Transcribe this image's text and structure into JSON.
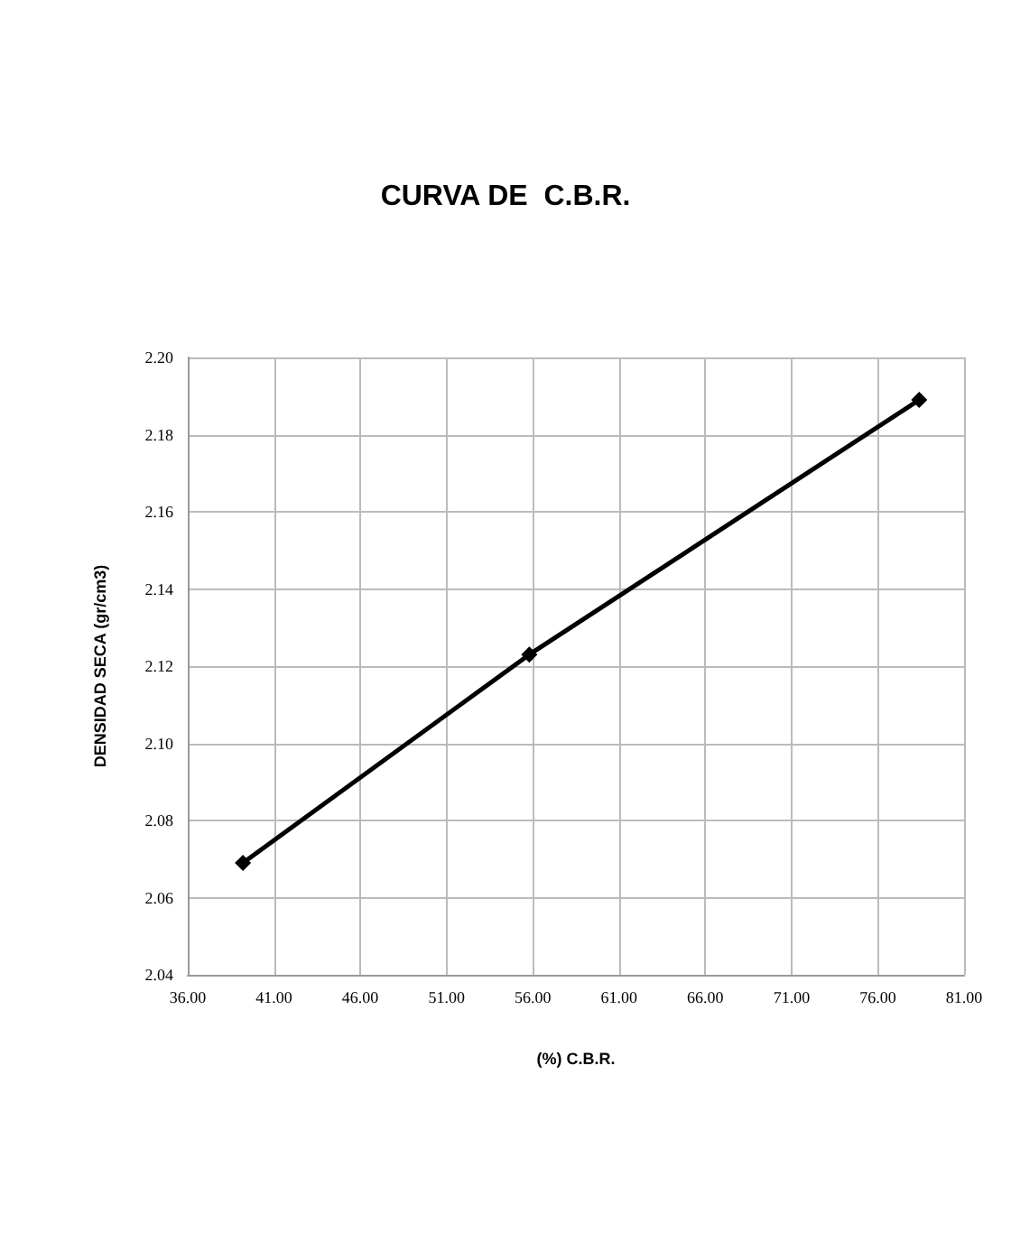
{
  "chart_data": {
    "type": "line",
    "title": "CURVA DE  C.B.R.",
    "xlabel": "(%) C.B.R.",
    "ylabel": "DENSIDAD SECA (gr/cm3)",
    "x": [
      39.2,
      55.8,
      78.4
    ],
    "series": [
      {
        "color": "#000000",
        "values": [
          2.069,
          2.123,
          2.189
        ]
      }
    ],
    "xlim": [
      36,
      81
    ],
    "xticks": [
      {
        "value": 36,
        "label": "36.00"
      },
      {
        "value": 41,
        "label": "41.00"
      },
      {
        "value": 46,
        "label": "46.00"
      },
      {
        "value": 51,
        "label": "51.00"
      },
      {
        "value": 56,
        "label": "56.00"
      },
      {
        "value": 61,
        "label": "61.00"
      },
      {
        "value": 66,
        "label": "66.00"
      },
      {
        "value": 71,
        "label": "71.00"
      },
      {
        "value": 76,
        "label": "76.00"
      },
      {
        "value": 81,
        "label": "81.00"
      }
    ],
    "ylim": [
      2.04,
      2.2
    ],
    "yticks": [
      {
        "value": 2.04,
        "label": "2.04"
      },
      {
        "value": 2.06,
        "label": "2.06"
      },
      {
        "value": 2.08,
        "label": "2.08"
      },
      {
        "value": 2.1,
        "label": "2.10"
      },
      {
        "value": 2.12,
        "label": "2.12"
      },
      {
        "value": 2.14,
        "label": "2.14"
      },
      {
        "value": 2.16,
        "label": "2.16"
      },
      {
        "value": 2.18,
        "label": "2.18"
      },
      {
        "value": 2.2,
        "label": "2.20"
      }
    ],
    "grid": true,
    "marker": "diamond",
    "line_style": "solid"
  }
}
